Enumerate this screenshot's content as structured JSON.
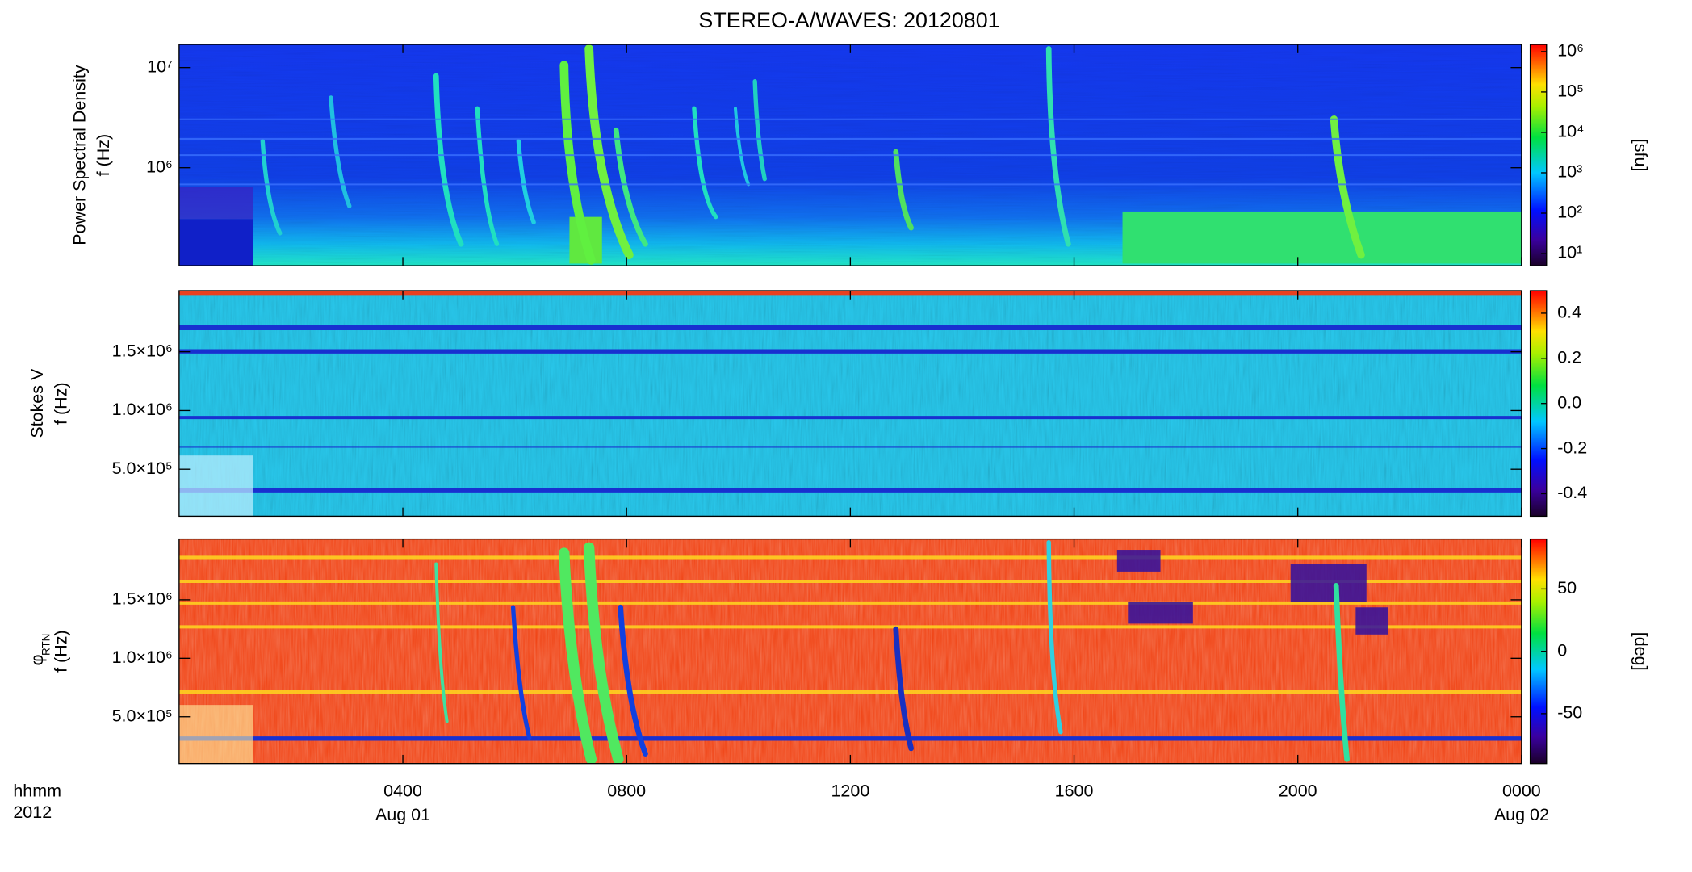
{
  "chart_data": [
    {
      "type": "heatmap",
      "title": "STEREO-A/WAVES: 20120801",
      "ylabel": [
        "Power Spectral Density",
        "f (Hz)"
      ],
      "ylog": true,
      "ylim": [
        105000,
        17000000
      ],
      "yticks": [
        {
          "value": 1000000,
          "label": "10⁶"
        },
        {
          "value": 10000000,
          "label": "10⁷"
        }
      ],
      "clog": true,
      "clim": [
        5,
        1500000
      ],
      "cticks": [
        {
          "value": 10,
          "label": "10¹"
        },
        {
          "value": 100,
          "label": "10²"
        },
        {
          "value": 1000,
          "label": "10³"
        },
        {
          "value": 10000,
          "label": "10⁴"
        },
        {
          "value": 100000,
          "label": "10⁵"
        },
        {
          "value": 1000000,
          "label": "10⁶"
        }
      ],
      "clabel": "[sfu]"
    },
    {
      "type": "heatmap",
      "ylabel": [
        "Stokes V",
        "f (Hz)"
      ],
      "ylim": [
        100000,
        2020000
      ],
      "yticks": [
        {
          "value": 500000,
          "label": "5.0×10⁵"
        },
        {
          "value": 1000000,
          "label": "1.0×10⁶"
        },
        {
          "value": 1500000,
          "label": "1.5×10⁶"
        }
      ],
      "clim": [
        -0.5,
        0.5
      ],
      "cticks": [
        0.4,
        0.2,
        {
          "value": 0,
          "label": "0.0"
        },
        -0.2,
        -0.4
      ]
    },
    {
      "type": "heatmap",
      "ylabel": [
        "φ",
        "f (Hz)"
      ],
      "ylabel_sub": "RTN",
      "ylim": [
        100000,
        2020000
      ],
      "yticks": [
        {
          "value": 500000,
          "label": "5.0×10⁵"
        },
        {
          "value": 1000000,
          "label": "1.0×10⁶"
        },
        {
          "value": 1500000,
          "label": "1.5×10⁶"
        }
      ],
      "clim": [
        -90,
        90
      ],
      "cticks": [
        50,
        0,
        -50
      ],
      "clabel": "[deg]",
      "xlim": [
        0,
        24
      ],
      "xticks": [
        {
          "value": 4,
          "label": "0400"
        },
        {
          "value": 8,
          "label": "0800"
        },
        {
          "value": 12,
          "label": "1200"
        },
        {
          "value": 16,
          "label": "1600"
        },
        {
          "value": 20,
          "label": "2000"
        },
        {
          "value": 24,
          "label": "0000"
        }
      ],
      "xdates": [
        {
          "value": 4,
          "label": "Aug 01"
        },
        {
          "value": 24,
          "label": "Aug 02"
        }
      ],
      "xunits": [
        "hhmm",
        "2012"
      ]
    }
  ]
}
